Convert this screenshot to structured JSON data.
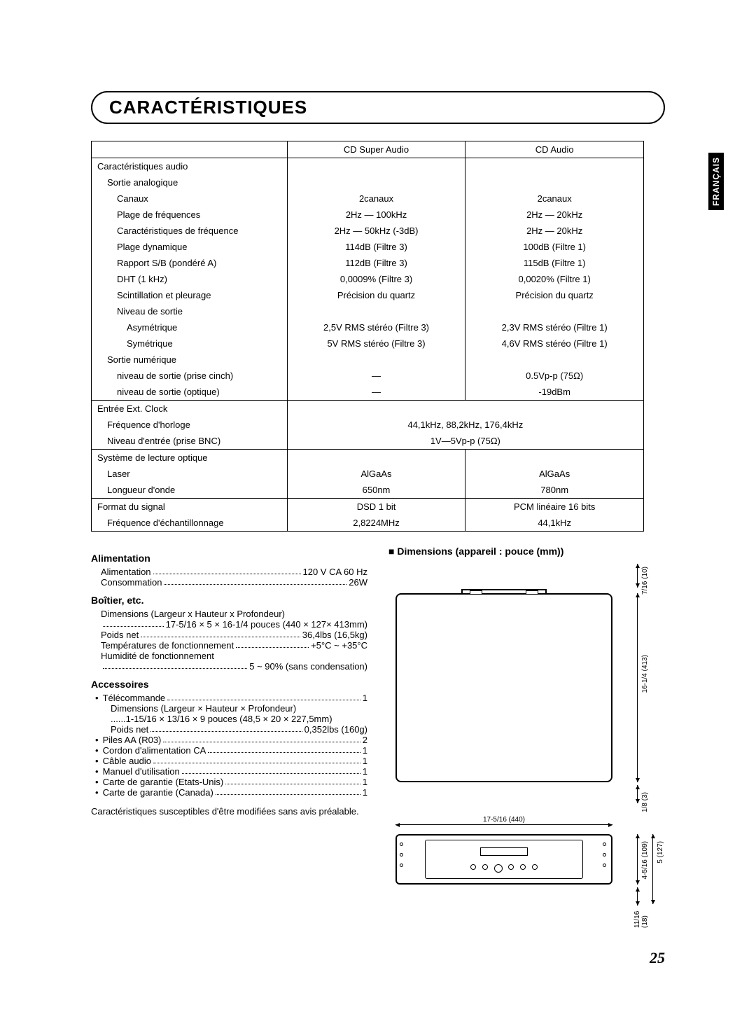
{
  "title": "CARACTÉRISTIQUES",
  "langTab": "FRANÇAIS",
  "pageNumber": "25",
  "table": {
    "headers": [
      "",
      "CD Super Audio",
      "CD Audio"
    ],
    "sections": [
      {
        "rows": [
          {
            "label": "Caractéristiques audio",
            "indent": 0,
            "c1": "",
            "c2": ""
          },
          {
            "label": "Sortie analogique",
            "indent": 1,
            "c1": "",
            "c2": ""
          },
          {
            "label": "Canaux",
            "indent": 2,
            "c1": "2canaux",
            "c2": "2canaux"
          },
          {
            "label": "Plage de fréquences",
            "indent": 2,
            "c1": "2Hz — 100kHz",
            "c2": "2Hz — 20kHz"
          },
          {
            "label": "Caractéristiques de fréquence",
            "indent": 2,
            "c1": "2Hz — 50kHz (-3dB)",
            "c2": "2Hz — 20kHz"
          },
          {
            "label": "Plage dynamique",
            "indent": 2,
            "c1": "114dB (Filtre 3)",
            "c2": "100dB (Filtre 1)"
          },
          {
            "label": "Rapport S/B (pondéré A)",
            "indent": 2,
            "c1": "112dB (Filtre 3)",
            "c2": "115dB (Filtre 1)"
          },
          {
            "label": "DHT (1 kHz)",
            "indent": 2,
            "c1": "0,0009% (Filtre 3)",
            "c2": "0,0020% (Filtre 1)"
          },
          {
            "label": "Scintillation et pleurage",
            "indent": 2,
            "c1": "Précision du quartz",
            "c2": "Précision du quartz"
          },
          {
            "label": "Niveau de sortie",
            "indent": 2,
            "c1": "",
            "c2": ""
          },
          {
            "label": "Asymétrique",
            "indent": 3,
            "c1": "2,5V RMS stéréo (Filtre 3)",
            "c2": "2,3V RMS stéréo (Filtre 1)"
          },
          {
            "label": "Symétrique",
            "indent": 3,
            "c1": "5V RMS stéréo (Filtre 3)",
            "c2": "4,6V RMS stéréo (Filtre 1)"
          },
          {
            "label": "Sortie numérique",
            "indent": 1,
            "c1": "",
            "c2": ""
          },
          {
            "label": "niveau de sortie (prise cinch)",
            "indent": 2,
            "c1": "—",
            "c2": "0.5Vp-p (75Ω)"
          },
          {
            "label": "niveau de sortie (optique)",
            "indent": 2,
            "c1": "—",
            "c2": "-19dBm"
          }
        ]
      },
      {
        "rows": [
          {
            "label": "Entrée Ext. Clock",
            "indent": 0,
            "merged": ""
          },
          {
            "label": "Fréquence d'horloge",
            "indent": 1,
            "merged": "44,1kHz, 88,2kHz, 176,4kHz"
          },
          {
            "label": "Niveau d'entrée (prise BNC)",
            "indent": 1,
            "merged": "1V—5Vp-p (75Ω)"
          }
        ]
      },
      {
        "rows": [
          {
            "label": "Système de lecture optique",
            "indent": 0,
            "c1": "",
            "c2": ""
          },
          {
            "label": "Laser",
            "indent": 1,
            "c1": "AlGaAs",
            "c2": "AlGaAs"
          },
          {
            "label": "Longueur d'onde",
            "indent": 1,
            "c1": "650nm",
            "c2": "780nm"
          }
        ]
      },
      {
        "rows": [
          {
            "label": "Format du signal",
            "indent": 0,
            "c1": "DSD 1 bit",
            "c2": "PCM linéaire 16 bits"
          },
          {
            "label": "Fréquence d'échantillonnage",
            "indent": 1,
            "c1": "2,8224MHz",
            "c2": "44,1kHz"
          }
        ]
      }
    ]
  },
  "alimentation": {
    "title": "Alimentation",
    "rows": [
      {
        "label": "Alimentation",
        "value": "120 V CA 60 Hz"
      },
      {
        "label": "Consommation",
        "value": "26W"
      }
    ]
  },
  "boitier": {
    "title": "Boîtier, etc.",
    "rows": [
      {
        "label": "Dimensions (Largeur x Hauteur x Profondeur)",
        "value": "",
        "sub": "17-5/16 × 5 × 16-1/4 pouces (440 × 127× 413mm)"
      },
      {
        "label": "Poids net",
        "value": "36,4lbs (16,5kg)"
      },
      {
        "label": "Températures de fonctionnement",
        "value": "+5°C ~ +35°C"
      },
      {
        "label": "Humidité de fonctionnement",
        "value": "",
        "sub": "5 ~ 90% (sans condensation)"
      }
    ]
  },
  "accessoires": {
    "title": "Accessoires",
    "items": [
      {
        "label": "Télécommande",
        "value": "1",
        "subs": [
          "Dimensions (Largeur × Hauteur × Profondeur)",
          "......1-15/16 × 13/16 × 9 pouces (48,5 × 20 × 227,5mm)"
        ],
        "subdot": {
          "label": "Poids net",
          "value": "0,352lbs (160g)"
        }
      },
      {
        "label": "Piles AA (R03)",
        "value": "2"
      },
      {
        "label": "Cordon d'alimentation CA",
        "value": "1"
      },
      {
        "label": "Câble audio",
        "value": "1"
      },
      {
        "label": "Manuel d'utilisation",
        "value": "1"
      },
      {
        "label": "Carte de garantie (Etats-Unis)",
        "value": "1"
      },
      {
        "label": "Carte de garantie (Canada)",
        "value": "1"
      }
    ]
  },
  "footnote": "Caractéristiques susceptibles d'être modifiées sans avis préalable.",
  "diagram": {
    "title": "■ Dimensions (appareil : pouce (mm))",
    "dims": {
      "topGap": "7/16 (10)",
      "depth": "16-1/4 (413)",
      "gap2": "1/8 (3)",
      "width": "17-5/16 (440)",
      "height1": "4-5/16 (109)",
      "height2": "5 (127)",
      "bottom": "11/16 (18)"
    }
  }
}
